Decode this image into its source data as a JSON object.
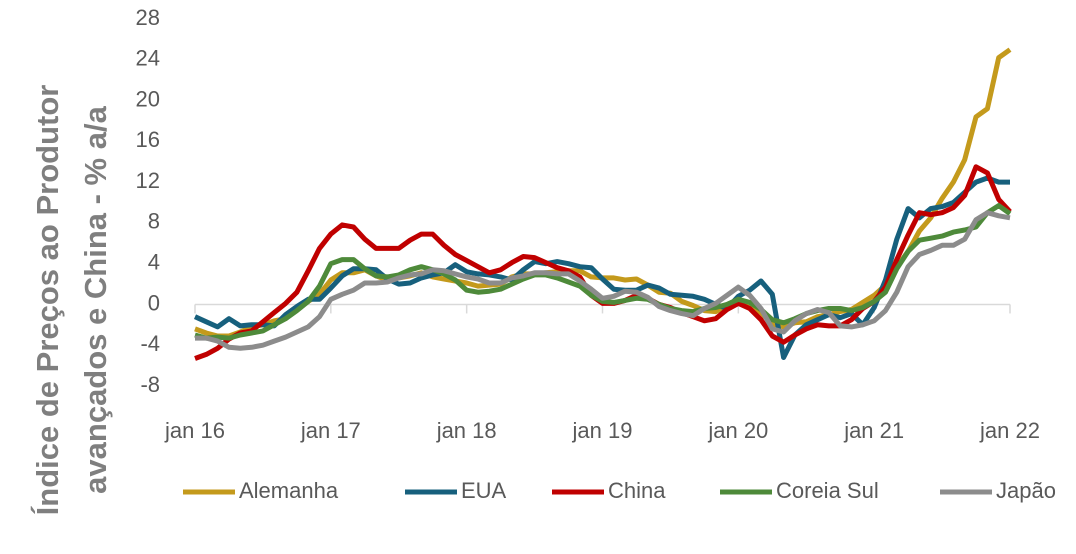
{
  "chart_data": {
    "type": "line",
    "ylabel": [
      "Índice de Preços ao Produtor",
      "avançados e China - % a/a"
    ],
    "categories": [
      "jan 16",
      null,
      null,
      null,
      null,
      null,
      null,
      null,
      null,
      null,
      null,
      null,
      "jan 17",
      null,
      null,
      null,
      null,
      null,
      null,
      null,
      null,
      null,
      null,
      null,
      "jan 18",
      null,
      null,
      null,
      null,
      null,
      null,
      null,
      null,
      null,
      null,
      null,
      "jan 19",
      null,
      null,
      null,
      null,
      null,
      null,
      null,
      null,
      null,
      null,
      null,
      "jan 20",
      null,
      null,
      null,
      null,
      null,
      null,
      null,
      null,
      null,
      null,
      null,
      "jan 21",
      null,
      null,
      null,
      null,
      null,
      null,
      null,
      null,
      null,
      null,
      null,
      "jan 22"
    ],
    "ylim": [
      -8,
      28
    ],
    "yticks": [
      -8,
      -4,
      0,
      4,
      8,
      12,
      16,
      20,
      24,
      28
    ],
    "legend": "bottom",
    "series": [
      {
        "name": "Alemanha",
        "color": "#c49a1c",
        "values": [
          -2.4,
          -2.8,
          -3.1,
          -3.1,
          -2.7,
          -2.2,
          -2.0,
          -1.6,
          -1.4,
          -0.4,
          0.3,
          1.0,
          2.4,
          3.1,
          3.1,
          3.4,
          2.8,
          2.4,
          2.6,
          2.8,
          3.1,
          2.7,
          2.5,
          2.3,
          2.1,
          1.8,
          1.9,
          2.0,
          2.7,
          3.0,
          3.0,
          3.1,
          3.2,
          3.3,
          3.3,
          2.7,
          2.6,
          2.6,
          2.4,
          2.5,
          1.9,
          1.2,
          1.1,
          0.3,
          -0.1,
          -0.6,
          -0.7,
          -0.2,
          0.2,
          -0.1,
          -0.8,
          -1.9,
          -2.2,
          -1.8,
          -1.7,
          -1.2,
          -1.0,
          -0.7,
          -0.5,
          0.2,
          0.9,
          1.9,
          3.7,
          5.2,
          7.2,
          8.5,
          10.4,
          12.0,
          14.2,
          18.4,
          19.2,
          24.2,
          25.0
        ]
      },
      {
        "name": "EUA",
        "color": "#17607d",
        "values": [
          -1.2,
          -1.7,
          -2.2,
          -1.4,
          -2.1,
          -2.0,
          -2.0,
          -2.1,
          -1.0,
          -0.2,
          0.5,
          0.5,
          1.6,
          2.8,
          3.5,
          3.5,
          3.4,
          2.5,
          2.0,
          2.1,
          2.6,
          2.9,
          3.1,
          3.9,
          3.2,
          3.0,
          2.9,
          2.7,
          2.4,
          3.4,
          4.2,
          4.0,
          4.2,
          4.0,
          3.7,
          3.6,
          2.5,
          1.5,
          1.4,
          1.4,
          1.9,
          1.6,
          1.0,
          0.9,
          0.8,
          0.5,
          0.0,
          -0.4,
          0.8,
          1.4,
          2.3,
          1.0,
          -5.2,
          -3.0,
          -2.0,
          -1.5,
          -1.0,
          -1.3,
          -0.9,
          -2.0,
          -0.3,
          2.4,
          6.4,
          9.4,
          8.5,
          9.4,
          9.6,
          10.0,
          11.0,
          12.0,
          12.4,
          12.0,
          12.0
        ]
      },
      {
        "name": "China",
        "color": "#c00000",
        "values": [
          -5.3,
          -4.9,
          -4.3,
          -3.4,
          -2.8,
          -2.6,
          -1.7,
          -0.8,
          0.1,
          1.2,
          3.3,
          5.5,
          6.9,
          7.8,
          7.6,
          6.4,
          5.5,
          5.5,
          5.5,
          6.3,
          6.9,
          6.9,
          5.8,
          4.9,
          4.3,
          3.7,
          3.1,
          3.4,
          4.1,
          4.7,
          4.6,
          4.1,
          3.6,
          3.3,
          2.7,
          0.9,
          0.1,
          0.1,
          0.4,
          0.9,
          0.6,
          0.0,
          -0.3,
          -0.8,
          -1.2,
          -1.6,
          -1.4,
          -0.5,
          0.1,
          -0.4,
          -1.5,
          -3.1,
          -3.7,
          -3.0,
          -2.4,
          -2.0,
          -2.1,
          -2.1,
          -1.5,
          -0.4,
          0.3,
          1.7,
          4.4,
          6.8,
          9.0,
          8.8,
          9.0,
          9.5,
          10.7,
          13.5,
          12.9,
          10.3,
          9.1
        ]
      },
      {
        "name": "Coreia Sul",
        "color": "#4e8a3a",
        "values": [
          -3.0,
          -3.3,
          -3.2,
          -3.3,
          -3.0,
          -2.8,
          -2.6,
          -2.0,
          -1.4,
          -0.6,
          0.3,
          1.8,
          4.0,
          4.4,
          4.4,
          3.5,
          2.8,
          2.7,
          2.9,
          3.4,
          3.7,
          3.4,
          3.0,
          2.4,
          1.4,
          1.2,
          1.3,
          1.5,
          2.0,
          2.5,
          2.9,
          2.9,
          2.6,
          2.2,
          1.8,
          0.9,
          0.3,
          0.2,
          0.4,
          0.6,
          0.5,
          0.0,
          -0.4,
          -0.6,
          -0.7,
          -0.4,
          -0.3,
          0.0,
          0.5,
          0.2,
          -0.5,
          -1.5,
          -1.8,
          -1.4,
          -0.9,
          -0.6,
          -0.4,
          -0.4,
          -0.6,
          -0.3,
          0.3,
          1.2,
          3.5,
          5.2,
          6.3,
          6.5,
          6.7,
          7.1,
          7.3,
          7.6,
          9.0,
          9.7,
          8.9
        ]
      },
      {
        "name": "Japão",
        "color": "#8c8c8c",
        "values": [
          -3.3,
          -3.3,
          -3.6,
          -4.2,
          -4.3,
          -4.2,
          -4.0,
          -3.6,
          -3.2,
          -2.7,
          -2.2,
          -1.2,
          0.5,
          1.0,
          1.4,
          2.1,
          2.1,
          2.2,
          2.6,
          2.9,
          3.0,
          3.4,
          3.3,
          3.0,
          2.7,
          2.5,
          2.1,
          2.1,
          2.6,
          2.8,
          3.1,
          3.1,
          3.0,
          3.0,
          2.3,
          1.5,
          0.6,
          0.8,
          1.3,
          1.2,
          0.7,
          -0.2,
          -0.6,
          -0.9,
          -1.1,
          -0.4,
          0.1,
          0.9,
          1.7,
          0.9,
          -0.4,
          -2.4,
          -2.7,
          -1.6,
          -0.9,
          -0.5,
          -0.8,
          -2.1,
          -2.2,
          -2.0,
          -1.6,
          -0.6,
          1.2,
          3.7,
          4.9,
          5.3,
          5.8,
          5.8,
          6.4,
          8.3,
          9.0,
          8.7,
          8.5
        ]
      }
    ]
  }
}
